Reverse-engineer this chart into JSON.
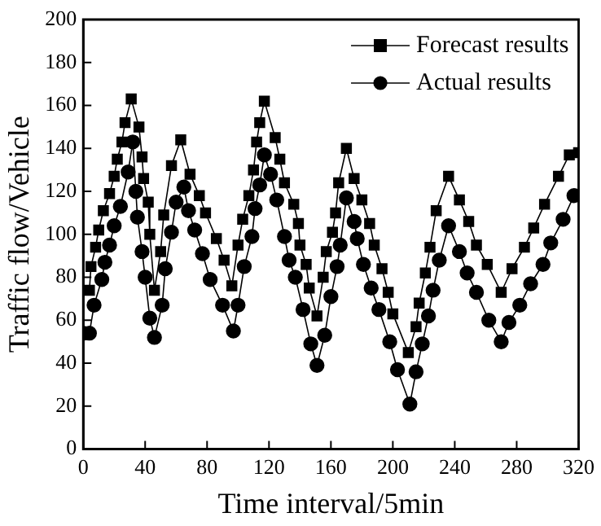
{
  "chart_data": {
    "type": "line",
    "xlabel": "Time interval/5min",
    "ylabel": "Traffic flow/Vehicle",
    "xlim": [
      0,
      320
    ],
    "xticks": [
      0,
      40,
      80,
      120,
      160,
      200,
      240,
      280,
      320
    ],
    "ylim": [
      0,
      200
    ],
    "yticks": [
      0,
      20,
      40,
      60,
      80,
      100,
      120,
      140,
      160,
      180,
      200
    ],
    "grid": false,
    "legend": "top right",
    "line_style": "solid",
    "series": [
      {
        "name": "Forecast results",
        "color": "#000000",
        "marker": "square",
        "x": [
          4,
          5,
          8,
          10,
          13,
          17,
          20,
          22,
          25,
          27,
          31,
          36,
          38,
          39,
          42,
          43,
          46,
          50,
          52,
          57,
          63,
          69,
          75,
          79,
          86,
          91,
          96,
          100,
          103,
          107,
          110,
          112,
          114,
          117,
          124,
          127,
          130,
          136,
          139,
          140,
          144,
          146,
          151,
          155,
          157,
          161,
          163,
          165,
          170,
          175,
          180,
          185,
          188,
          193,
          197,
          200,
          210,
          215,
          217,
          221,
          224,
          228,
          236,
          243,
          249,
          254,
          261,
          270,
          277,
          285,
          291,
          298,
          307,
          314,
          320
        ],
        "values": [
          74,
          85,
          94,
          102,
          111,
          119,
          127,
          135,
          143,
          152,
          163,
          150,
          136,
          126,
          115,
          100,
          74,
          92,
          109,
          132,
          144,
          128,
          118,
          110,
          98,
          88,
          76,
          95,
          107,
          118,
          130,
          143,
          152,
          162,
          145,
          135,
          124,
          114,
          105,
          95,
          86,
          75,
          62,
          80,
          92,
          101,
          110,
          124,
          140,
          126,
          116,
          105,
          95,
          84,
          73,
          63,
          45,
          57,
          68,
          82,
          94,
          111,
          127,
          116,
          106,
          95,
          86,
          73,
          84,
          94,
          103,
          114,
          127,
          137,
          138
        ]
      },
      {
        "name": "Actual results",
        "color": "#000000",
        "marker": "circle",
        "x": [
          0,
          4,
          7,
          12,
          14,
          17,
          20,
          24,
          29,
          32,
          34,
          35,
          38,
          40,
          43,
          46,
          51,
          53,
          57,
          60,
          65,
          68,
          72,
          77,
          82,
          90,
          97,
          100,
          104,
          109,
          111,
          114,
          117,
          121,
          125,
          130,
          133,
          137,
          142,
          147,
          151,
          156,
          160,
          164,
          166,
          170,
          175,
          177,
          181,
          186,
          191,
          198,
          203,
          211,
          215,
          219,
          223,
          226,
          230,
          236,
          243,
          248,
          254,
          262,
          270,
          275,
          282,
          289,
          297,
          302,
          310,
          317
        ],
        "values": [
          54,
          54,
          67,
          79,
          87,
          95,
          104,
          113,
          129,
          143,
          120,
          108,
          92,
          80,
          61,
          52,
          67,
          84,
          101,
          115,
          122,
          111,
          102,
          91,
          79,
          67,
          55,
          67,
          85,
          99,
          112,
          123,
          137,
          128,
          116,
          99,
          88,
          80,
          65,
          49,
          39,
          53,
          71,
          85,
          95,
          117,
          106,
          98,
          86,
          75,
          65,
          50,
          37,
          21,
          36,
          49,
          62,
          74,
          88,
          104,
          92,
          82,
          73,
          60,
          50,
          59,
          67,
          77,
          86,
          96,
          107,
          118
        ]
      }
    ]
  }
}
